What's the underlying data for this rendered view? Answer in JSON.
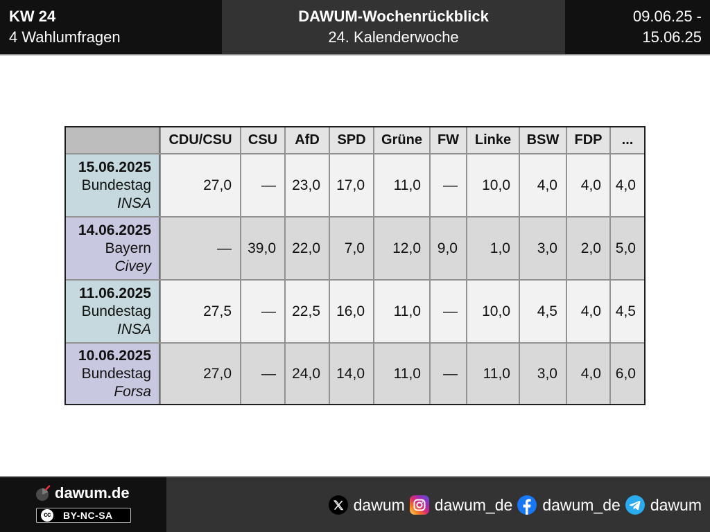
{
  "colors": {
    "bar_dark": "#111111",
    "bar_mid": "#333333",
    "bar_line": "#8c8c8c",
    "table_border": "#1f1f1f",
    "grid_line": "#929292",
    "header_cell": "#e4e4e4",
    "corner_cell": "#bdbdbd",
    "label_odd": "#c5d9de",
    "label_even": "#c8c8e1",
    "cell_odd": "#f2f2f2",
    "cell_even": "#d9d9d9",
    "text": "#111111"
  },
  "header": {
    "week": "KW 24",
    "poll_count": "4 Wahlumfragen",
    "title": "DAWUM-Wochenrückblick",
    "subtitle": "24. Kalenderwoche",
    "date_from": "09.06.25 -",
    "date_to": "15.06.25"
  },
  "chart_data": {
    "type": "table",
    "columns": [
      "CDU/CSU",
      "CSU",
      "AfD",
      "SPD",
      "Grüne",
      "FW",
      "Linke",
      "BSW",
      "FDP",
      "..."
    ],
    "rows": [
      {
        "date": "15.06.2025",
        "parliament": "Bundestag",
        "institute": "INSA",
        "values": [
          "27,0",
          "—",
          "23,0",
          "17,0",
          "11,0",
          "—",
          "10,0",
          "4,0",
          "4,0",
          "4,0"
        ]
      },
      {
        "date": "14.06.2025",
        "parliament": "Bayern",
        "institute": "Civey",
        "values": [
          "—",
          "39,0",
          "22,0",
          "7,0",
          "12,0",
          "9,0",
          "1,0",
          "3,0",
          "2,0",
          "5,0"
        ]
      },
      {
        "date": "11.06.2025",
        "parliament": "Bundestag",
        "institute": "INSA",
        "values": [
          "27,5",
          "—",
          "22,5",
          "16,0",
          "11,0",
          "—",
          "10,0",
          "4,5",
          "4,0",
          "4,5"
        ]
      },
      {
        "date": "10.06.2025",
        "parliament": "Bundestag",
        "institute": "Forsa",
        "values": [
          "27,0",
          "—",
          "24,0",
          "14,0",
          "11,0",
          "—",
          "11,0",
          "3,0",
          "4,0",
          "6,0"
        ]
      }
    ]
  },
  "footer": {
    "site": "dawum.de",
    "license_mark": "cc",
    "license": "BY-NC-SA",
    "social": [
      {
        "icon": "x-icon",
        "handle": "dawum"
      },
      {
        "icon": "instagram-icon",
        "handle": "dawum_de"
      },
      {
        "icon": "facebook-icon",
        "handle": "dawum_de"
      },
      {
        "icon": "telegram-icon",
        "handle": "dawum"
      }
    ]
  }
}
